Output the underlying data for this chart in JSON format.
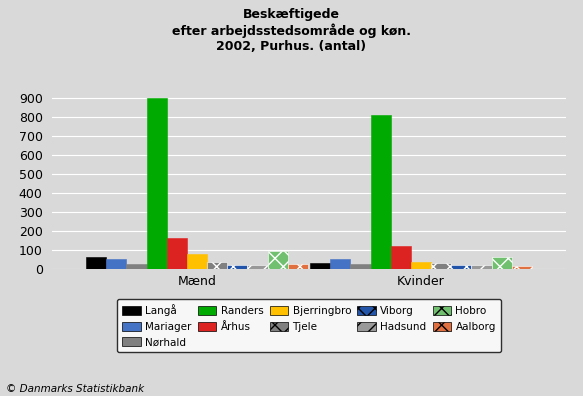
{
  "title": "Beskæftigede\nefter arbejdsstedsområde og køn.\n2002, Purhus. (antal)",
  "groups": [
    "Mænd",
    "Kvinder"
  ],
  "series": [
    {
      "label": "Langå",
      "values": [
        65,
        35
      ],
      "color": "#000000",
      "hatch": null
    },
    {
      "label": "Mariager",
      "values": [
        55,
        55
      ],
      "color": "#4472c4",
      "hatch": null
    },
    {
      "label": "Nørhald",
      "values": [
        30,
        30
      ],
      "color": "#808080",
      "hatch": null
    },
    {
      "label": "Randers",
      "values": [
        900,
        810
      ],
      "color": "#00aa00",
      "hatch": null
    },
    {
      "label": "Århus",
      "values": [
        165,
        125
      ],
      "color": "#dd2222",
      "hatch": null
    },
    {
      "label": "Bjerringbro",
      "values": [
        80,
        40
      ],
      "color": "#ffc000",
      "hatch": null
    },
    {
      "label": "Tjele",
      "values": [
        40,
        35
      ],
      "color": "#808080",
      "hatch": "xx"
    },
    {
      "label": "Viborg",
      "values": [
        20,
        25
      ],
      "color": "#2255aa",
      "hatch": "xx"
    },
    {
      "label": "Hadsund",
      "values": [
        25,
        25
      ],
      "color": "#999999",
      "hatch": "//"
    },
    {
      "label": "Hobro",
      "values": [
        98,
        65
      ],
      "color": "#70c070",
      "hatch": "xx"
    },
    {
      "label": "Aalborg",
      "values": [
        30,
        15
      ],
      "color": "#e07040",
      "hatch": "xx"
    }
  ],
  "ylim": [
    0,
    1000
  ],
  "yticks": [
    0,
    100,
    200,
    300,
    400,
    500,
    600,
    700,
    800,
    900
  ],
  "background_color": "#d9d9d9",
  "plot_background": "#d9d9d9",
  "footer": "© Danmarks Statistikbank"
}
